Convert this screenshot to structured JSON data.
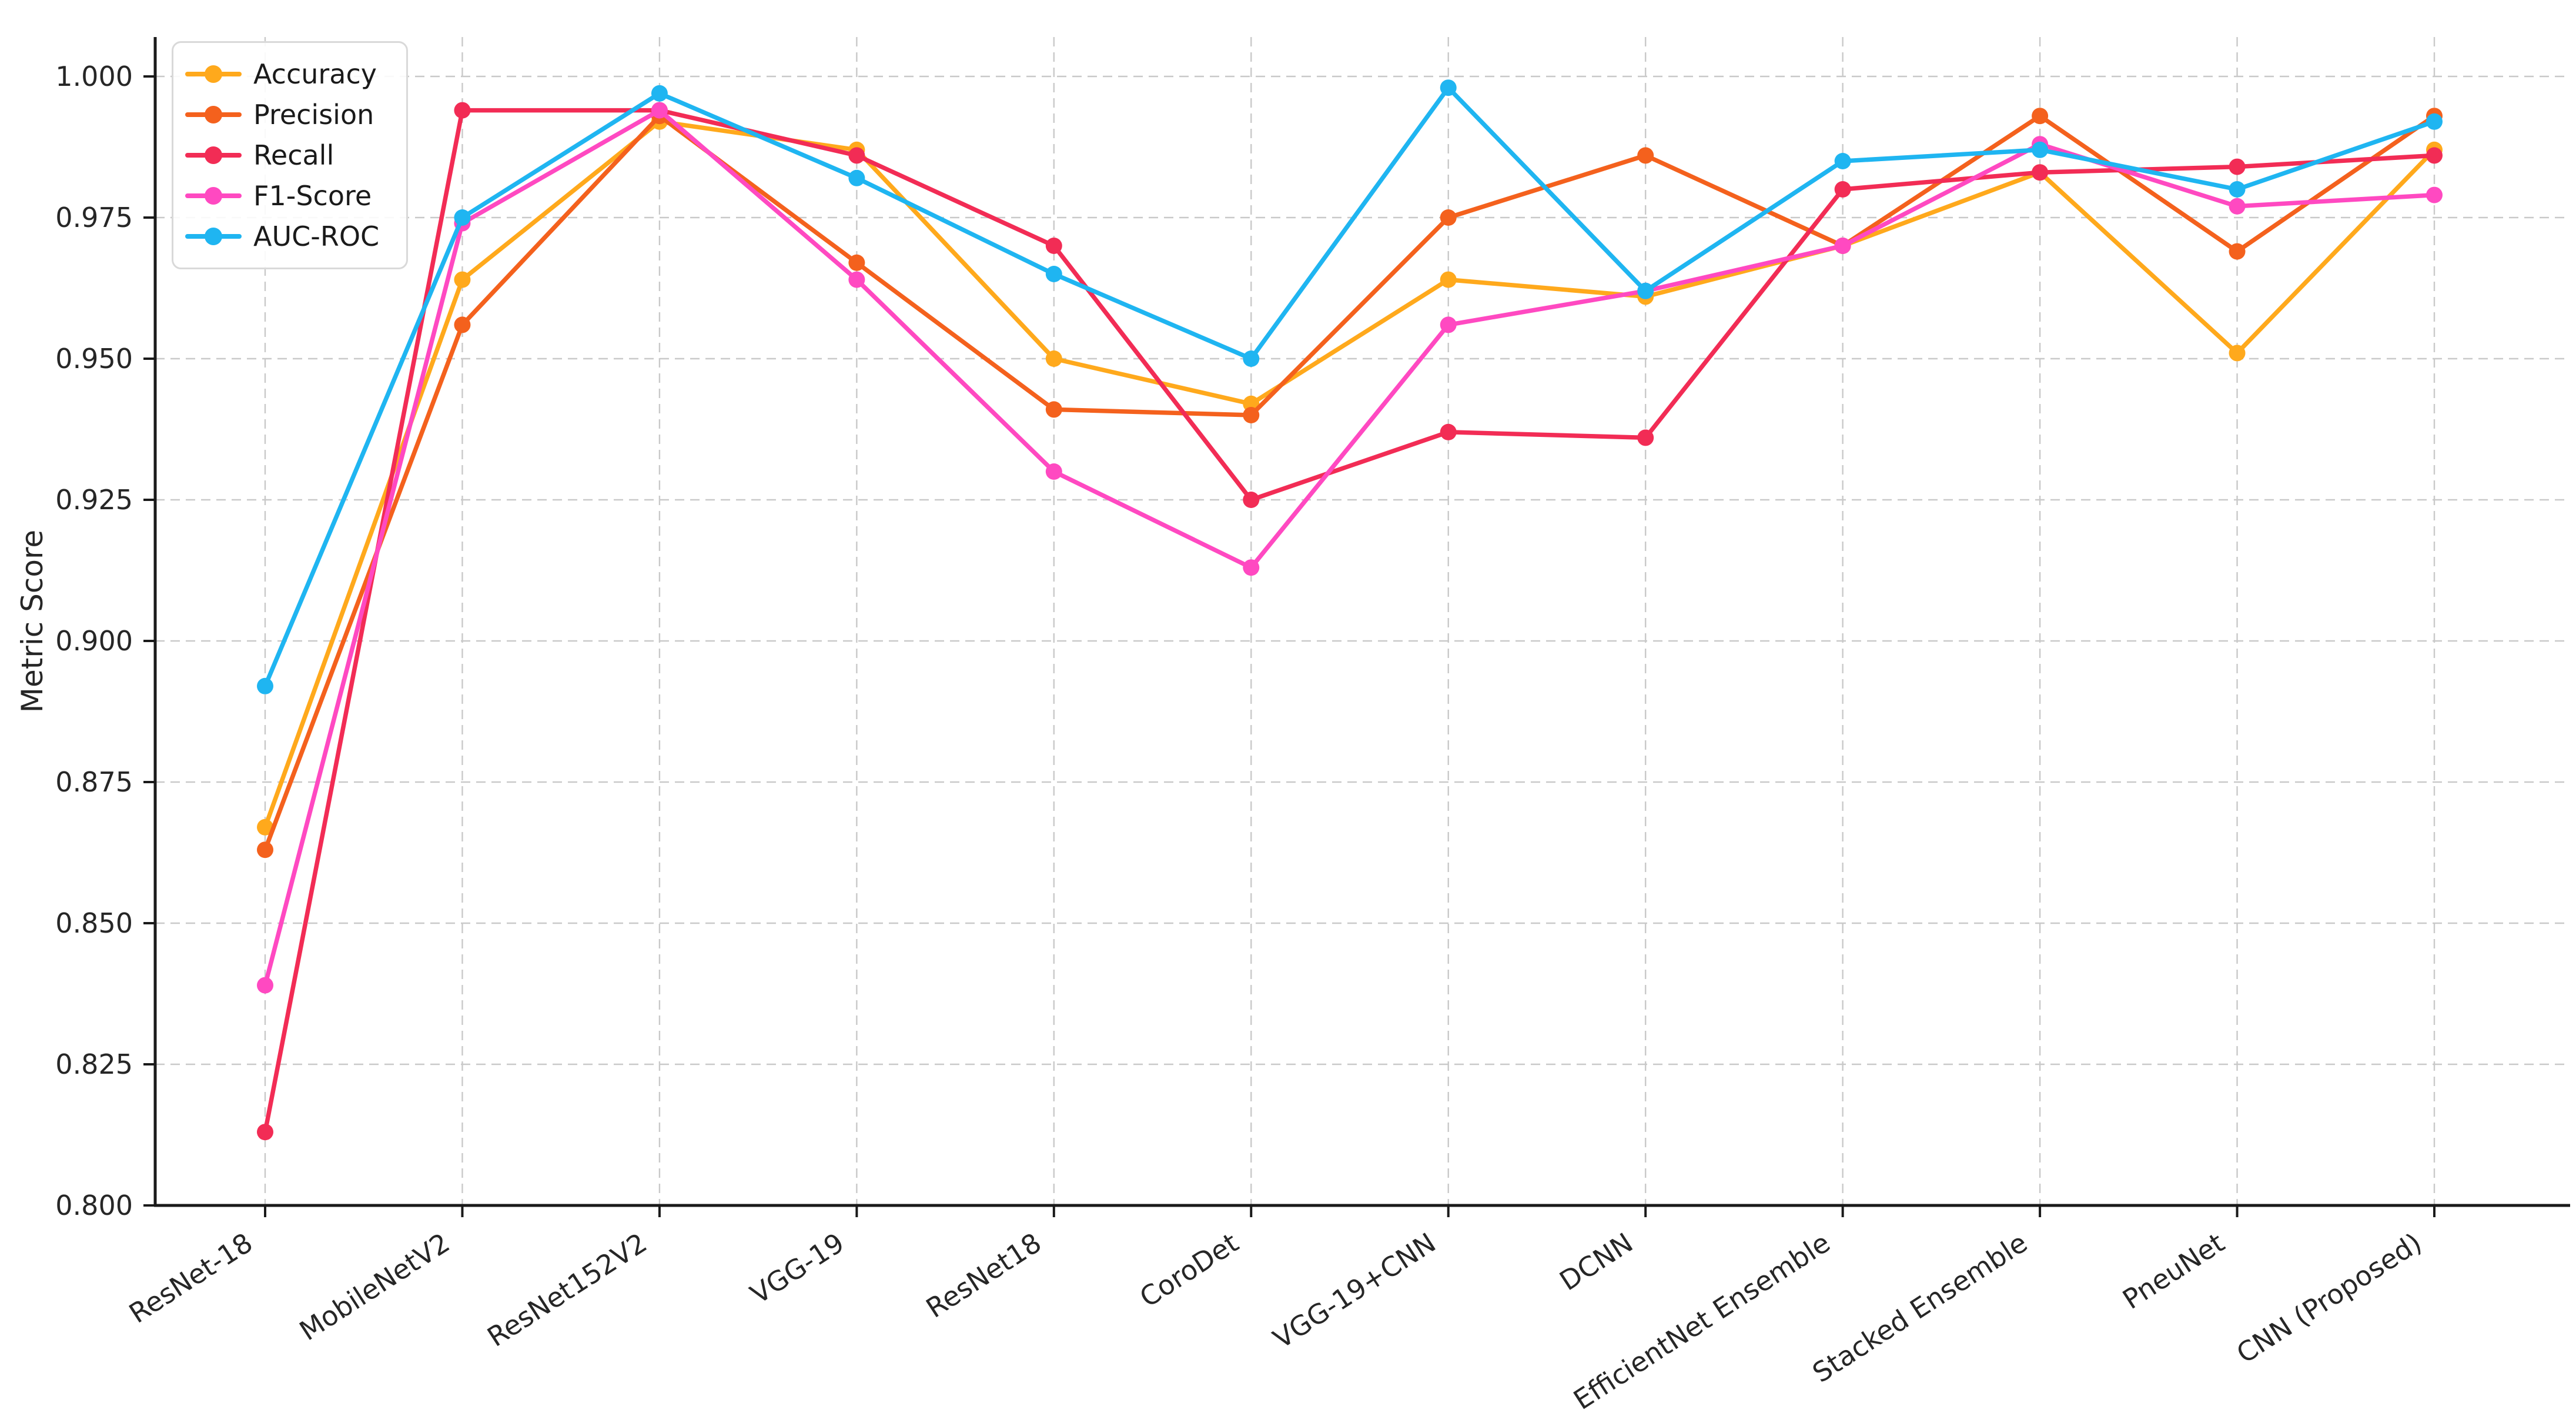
{
  "figure": {
    "background": "#ffffff",
    "grid_color": "#c9c9c9",
    "spine_color": "#1a1a1a",
    "tick_color": "#262626"
  },
  "chart_data": {
    "type": "line",
    "title": "",
    "xlabel": "",
    "ylabel": "Metric Score",
    "ylim": [
      0.8,
      1.007
    ],
    "yticks": [
      0.8,
      0.825,
      0.85,
      0.875,
      0.9,
      0.925,
      0.95,
      0.975,
      1.0
    ],
    "grid": true,
    "legend_position": "upper-left",
    "categories": [
      "ResNet-18",
      "MobileNetV2",
      "ResNet152V2",
      "VGG-19",
      "ResNet18",
      "CoroDet",
      "VGG-19+CNN",
      "DCNN",
      "EfficientNet Ensemble",
      "Stacked Ensemble",
      "PneuNet",
      "CNN (Proposed)"
    ],
    "series": [
      {
        "name": "Accuracy",
        "color": "#FFA91C",
        "values": [
          0.867,
          0.964,
          0.992,
          0.987,
          0.95,
          0.942,
          0.964,
          0.961,
          0.97,
          0.983,
          0.951,
          0.987
        ]
      },
      {
        "name": "Precision",
        "color": "#F4611D",
        "values": [
          0.863,
          0.956,
          0.993,
          0.967,
          0.941,
          0.94,
          0.975,
          0.986,
          0.97,
          0.993,
          0.969,
          0.993
        ]
      },
      {
        "name": "Recall",
        "color": "#F22C55",
        "values": [
          0.813,
          0.994,
          0.994,
          0.986,
          0.97,
          0.925,
          0.937,
          0.936,
          0.98,
          0.983,
          0.984,
          0.986
        ]
      },
      {
        "name": "F1-Score",
        "color": "#FF49C1",
        "values": [
          0.839,
          0.974,
          0.994,
          0.964,
          0.93,
          0.913,
          0.956,
          0.962,
          0.97,
          0.988,
          0.977,
          0.979
        ]
      },
      {
        "name": "AUC-ROC",
        "color": "#1FB5F1",
        "values": [
          0.892,
          0.975,
          0.997,
          0.982,
          0.965,
          0.95,
          0.998,
          0.962,
          0.985,
          0.987,
          0.98,
          0.992
        ]
      }
    ]
  }
}
